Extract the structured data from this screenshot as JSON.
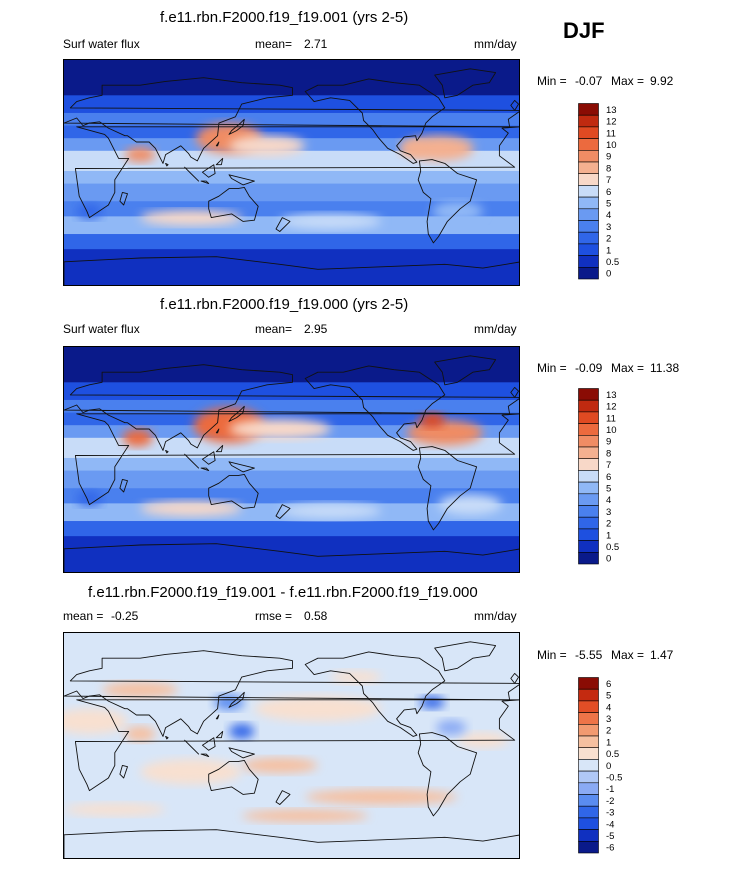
{
  "season": "DJF",
  "panels": [
    {
      "title": "f.e11.rbn.F2000.f19_f19.001 (yrs 2-5)",
      "left_label": "Surf water flux",
      "mean_label": "mean=",
      "mean_value": "2.71",
      "units": "mm/day",
      "min_label": "Min =",
      "min_value": "-0.07",
      "max_label": "Max =",
      "max_value": "9.92",
      "colorbar_levels": [
        "13",
        "12",
        "11",
        "10",
        "9",
        "8",
        "7",
        "6",
        "5",
        "4",
        "3",
        "2",
        "1",
        "0.5",
        "0"
      ]
    },
    {
      "title": "f.e11.rbn.F2000.f19_f19.000 (yrs 2-5)",
      "left_label": "Surf water flux",
      "mean_label": "mean=",
      "mean_value": "2.95",
      "units": "mm/day",
      "min_label": "Min =",
      "min_value": "-0.09",
      "max_label": "Max =",
      "max_value": "11.38",
      "colorbar_levels": [
        "13",
        "12",
        "11",
        "10",
        "9",
        "8",
        "7",
        "6",
        "5",
        "4",
        "3",
        "2",
        "1",
        "0.5",
        "0"
      ]
    },
    {
      "title": "f.e11.rbn.F2000.f19_f19.001 - f.e11.rbn.F2000.f19_f19.000",
      "left_label": "mean =",
      "left_value": "-0.25",
      "mean_label": "rmse =",
      "mean_value": "0.58",
      "units": "mm/day",
      "min_label": "Min =",
      "min_value": "-5.55",
      "max_label": "Max =",
      "max_value": "1.47",
      "colorbar_levels": [
        "6",
        "5",
        "4",
        "3",
        "2",
        "1",
        "0.5",
        "0",
        "-0.5",
        "-1",
        "-2",
        "-3",
        "-4",
        "-5",
        "-6"
      ]
    }
  ],
  "colors": {
    "abs_scale": [
      "#0a1a8a",
      "#1030c0",
      "#1e50e0",
      "#3066e8",
      "#4a80ee",
      "#6a9af2",
      "#90b8f6",
      "#c8dcf8",
      "#f8d8c8",
      "#f4b090",
      "#f08c64",
      "#ec6a3e",
      "#e04a22",
      "#c02a10",
      "#8a0c04"
    ],
    "diff_scale": [
      "#0a1a8a",
      "#1030c0",
      "#1e50e0",
      "#3066e8",
      "#5a8cf0",
      "#8aaaf4",
      "#b0c8f6",
      "#d8e6f8",
      "#f8e0d0",
      "#f6c0a0",
      "#f29a70",
      "#ee7448",
      "#e24e26",
      "#c42a10",
      "#8a0c04"
    ]
  }
}
